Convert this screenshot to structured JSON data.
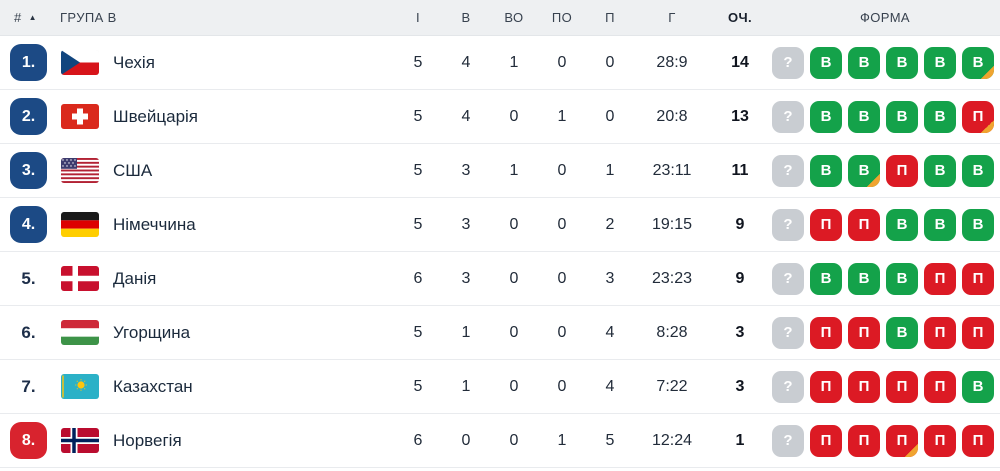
{
  "table": {
    "header": {
      "rank": "#",
      "sort_icon": "▲",
      "group": "ГРУПА В",
      "stat_columns": [
        "І",
        "В",
        "ВО",
        "ПО",
        "П",
        "Г",
        "ОЧ."
      ],
      "form": "ФОРМА"
    },
    "rows": [
      {
        "rank": "1.",
        "rank_style": "blue",
        "flag": "cz",
        "team": "Чехія",
        "stats": [
          "5",
          "4",
          "1",
          "0",
          "0",
          "28:9"
        ],
        "points": "14",
        "form": [
          {
            "label": "?",
            "result": "unknown",
            "corner": false
          },
          {
            "label": "В",
            "result": "win",
            "corner": false
          },
          {
            "label": "В",
            "result": "win",
            "corner": false
          },
          {
            "label": "В",
            "result": "win",
            "corner": false
          },
          {
            "label": "В",
            "result": "win",
            "corner": false
          },
          {
            "label": "В",
            "result": "win",
            "corner": true
          }
        ]
      },
      {
        "rank": "2.",
        "rank_style": "blue",
        "flag": "ch",
        "team": "Швейцарія",
        "stats": [
          "5",
          "4",
          "0",
          "1",
          "0",
          "20:8"
        ],
        "points": "13",
        "form": [
          {
            "label": "?",
            "result": "unknown",
            "corner": false
          },
          {
            "label": "В",
            "result": "win",
            "corner": false
          },
          {
            "label": "В",
            "result": "win",
            "corner": false
          },
          {
            "label": "В",
            "result": "win",
            "corner": false
          },
          {
            "label": "В",
            "result": "win",
            "corner": false
          },
          {
            "label": "П",
            "result": "loss",
            "corner": true
          }
        ]
      },
      {
        "rank": "3.",
        "rank_style": "blue",
        "flag": "us",
        "team": "США",
        "stats": [
          "5",
          "3",
          "1",
          "0",
          "1",
          "23:11"
        ],
        "points": "11",
        "form": [
          {
            "label": "?",
            "result": "unknown",
            "corner": false
          },
          {
            "label": "В",
            "result": "win",
            "corner": false
          },
          {
            "label": "В",
            "result": "win",
            "corner": true
          },
          {
            "label": "П",
            "result": "loss",
            "corner": false
          },
          {
            "label": "В",
            "result": "win",
            "corner": false
          },
          {
            "label": "В",
            "result": "win",
            "corner": false
          }
        ]
      },
      {
        "rank": "4.",
        "rank_style": "blue",
        "flag": "de",
        "team": "Німеччина",
        "stats": [
          "5",
          "3",
          "0",
          "0",
          "2",
          "19:15"
        ],
        "points": "9",
        "form": [
          {
            "label": "?",
            "result": "unknown",
            "corner": false
          },
          {
            "label": "П",
            "result": "loss",
            "corner": false
          },
          {
            "label": "П",
            "result": "loss",
            "corner": false
          },
          {
            "label": "В",
            "result": "win",
            "corner": false
          },
          {
            "label": "В",
            "result": "win",
            "corner": false
          },
          {
            "label": "В",
            "result": "win",
            "corner": false
          }
        ]
      },
      {
        "rank": "5.",
        "rank_style": "plain",
        "flag": "dk",
        "team": "Данія",
        "stats": [
          "6",
          "3",
          "0",
          "0",
          "3",
          "23:23"
        ],
        "points": "9",
        "form": [
          {
            "label": "?",
            "result": "unknown",
            "corner": false
          },
          {
            "label": "В",
            "result": "win",
            "corner": false
          },
          {
            "label": "В",
            "result": "win",
            "corner": false
          },
          {
            "label": "В",
            "result": "win",
            "corner": false
          },
          {
            "label": "П",
            "result": "loss",
            "corner": false
          },
          {
            "label": "П",
            "result": "loss",
            "corner": false
          }
        ]
      },
      {
        "rank": "6.",
        "rank_style": "plain",
        "flag": "hu",
        "team": "Угорщина",
        "stats": [
          "5",
          "1",
          "0",
          "0",
          "4",
          "8:28"
        ],
        "points": "3",
        "form": [
          {
            "label": "?",
            "result": "unknown",
            "corner": false
          },
          {
            "label": "П",
            "result": "loss",
            "corner": false
          },
          {
            "label": "П",
            "result": "loss",
            "corner": false
          },
          {
            "label": "В",
            "result": "win",
            "corner": false
          },
          {
            "label": "П",
            "result": "loss",
            "corner": false
          },
          {
            "label": "П",
            "result": "loss",
            "corner": false
          }
        ]
      },
      {
        "rank": "7.",
        "rank_style": "plain",
        "flag": "kz",
        "team": "Казахстан",
        "stats": [
          "5",
          "1",
          "0",
          "0",
          "4",
          "7:22"
        ],
        "points": "3",
        "form": [
          {
            "label": "?",
            "result": "unknown",
            "corner": false
          },
          {
            "label": "П",
            "result": "loss",
            "corner": false
          },
          {
            "label": "П",
            "result": "loss",
            "corner": false
          },
          {
            "label": "П",
            "result": "loss",
            "corner": false
          },
          {
            "label": "П",
            "result": "loss",
            "corner": false
          },
          {
            "label": "В",
            "result": "win",
            "corner": false
          }
        ]
      },
      {
        "rank": "8.",
        "rank_style": "red",
        "flag": "no",
        "team": "Норвегія",
        "stats": [
          "6",
          "0",
          "0",
          "1",
          "5",
          "12:24"
        ],
        "points": "1",
        "form": [
          {
            "label": "?",
            "result": "unknown",
            "corner": false
          },
          {
            "label": "П",
            "result": "loss",
            "corner": false
          },
          {
            "label": "П",
            "result": "loss",
            "corner": false
          },
          {
            "label": "П",
            "result": "loss",
            "corner": true
          },
          {
            "label": "П",
            "result": "loss",
            "corner": false
          },
          {
            "label": "П",
            "result": "loss",
            "corner": false
          }
        ]
      }
    ]
  },
  "colors": {
    "header_bg": "#eef0f2",
    "row_bg": "#ffffff",
    "separator": "#e9ebee",
    "rank_badge_blue": "#1c4a85",
    "rank_badge_red": "#d8232e",
    "form_win_green": "#14a24a",
    "form_loss_red": "#dc1a24",
    "form_unknown_gray": "#c9cdd2",
    "form_overtime_corner": "#f0a430"
  }
}
